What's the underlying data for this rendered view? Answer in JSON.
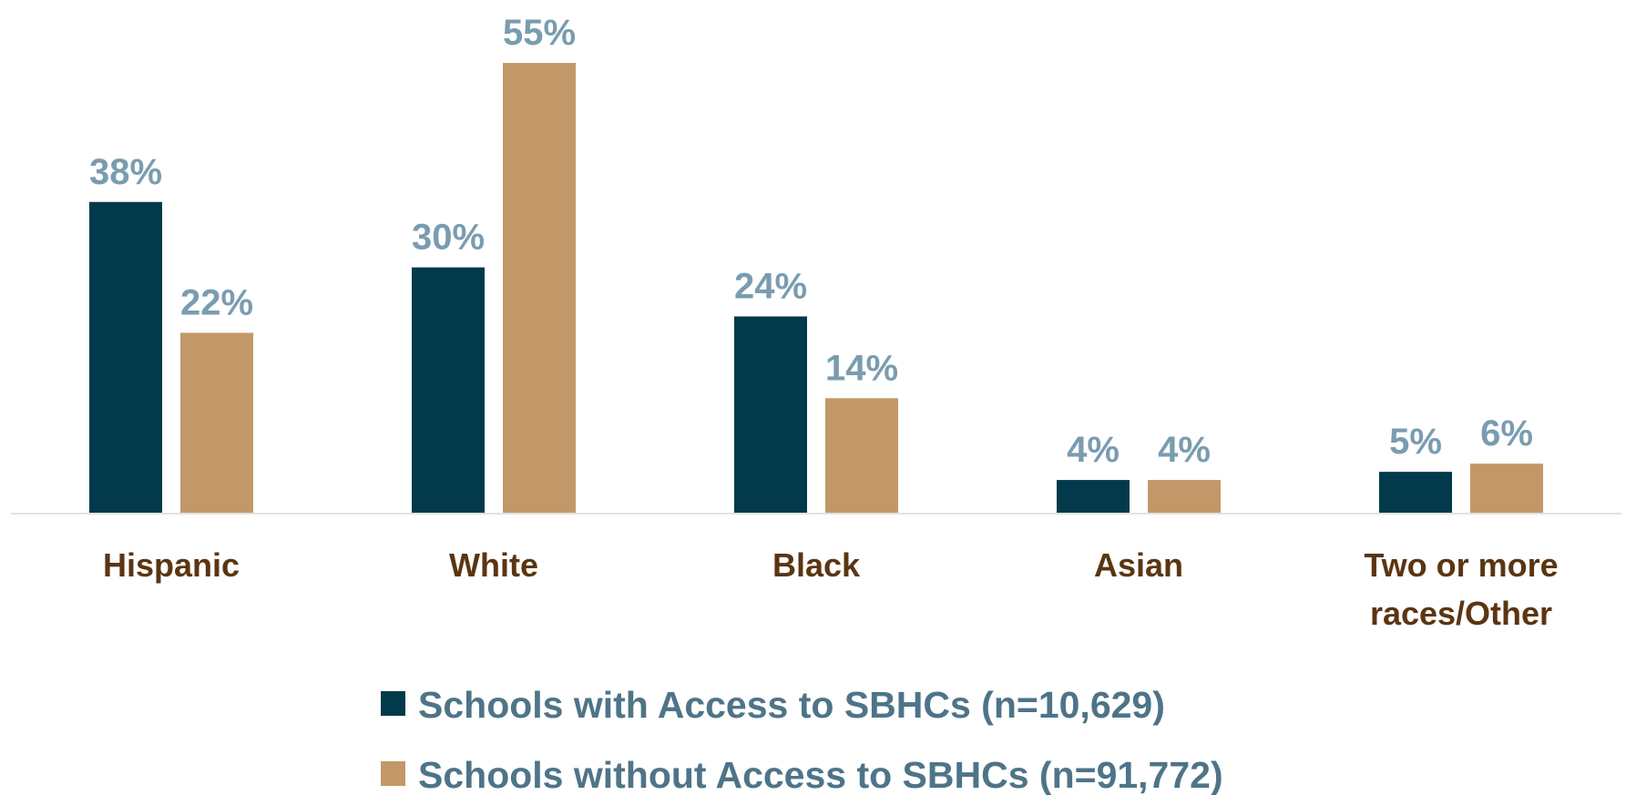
{
  "chart_data": {
    "type": "bar",
    "categories": [
      "Hispanic",
      "White",
      "Black",
      "Asian",
      "Two or more races/Other"
    ],
    "category_lines": [
      [
        "Hispanic"
      ],
      [
        "White"
      ],
      [
        "Black"
      ],
      [
        "Asian"
      ],
      [
        "Two or more",
        "races/Other"
      ]
    ],
    "series": [
      {
        "name": "Schools with Access to SBHCs (n=10,629)",
        "values": [
          38,
          30,
          24,
          4,
          5
        ],
        "labels": [
          "38%",
          "30%",
          "24%",
          "4%",
          "5%"
        ],
        "color": "#023a4b"
      },
      {
        "name": "Schools without Access to SBHCs (n=91,772)",
        "values": [
          22,
          55,
          14,
          4,
          6
        ],
        "labels": [
          "22%",
          "55%",
          "14%",
          "4%",
          "6%"
        ],
        "color": "#c39868"
      }
    ],
    "ylim": [
      0,
      60
    ],
    "grid": false,
    "legend": "bottom",
    "colors": {
      "data_label": "#7a9cb0",
      "category_label": "#5b3512",
      "legend_text": "#4e7488",
      "baseline": "#e2e2e2"
    }
  }
}
